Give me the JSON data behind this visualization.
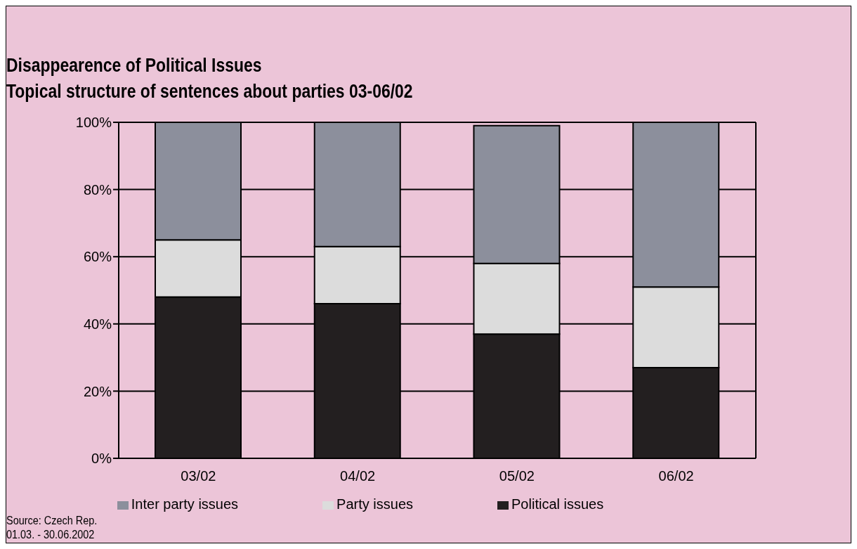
{
  "chart_data": {
    "type": "bar",
    "title": "Disappearence of Political Issues",
    "subtitle": "Topical structure of sentences about parties 03-06/02",
    "categories": [
      "03/02",
      "04/02",
      "05/02",
      "06/02"
    ],
    "series": [
      {
        "name": "Political issues",
        "color": "#231f20",
        "values": [
          48,
          46,
          37,
          27
        ]
      },
      {
        "name": "Party issues",
        "color": "#dcdcdc",
        "values": [
          17,
          17,
          21,
          24
        ]
      },
      {
        "name": "Inter party issues",
        "color": "#8c8f9c",
        "values": [
          35,
          37,
          41,
          49
        ]
      }
    ],
    "stacked": true,
    "ylim": [
      0,
      100
    ],
    "yticks": [
      {
        "value": 0,
        "label": "0%"
      },
      {
        "value": 20,
        "label": "20%"
      },
      {
        "value": 40,
        "label": "40%"
      },
      {
        "value": 60,
        "label": "60%"
      },
      {
        "value": 80,
        "label": "80%"
      },
      {
        "value": 100,
        "label": "100%"
      }
    ],
    "grid": "y",
    "legend": "bottom",
    "annotations": [
      "Source: Czech Rep.",
      "01.03. - 30.06.2002"
    ]
  }
}
